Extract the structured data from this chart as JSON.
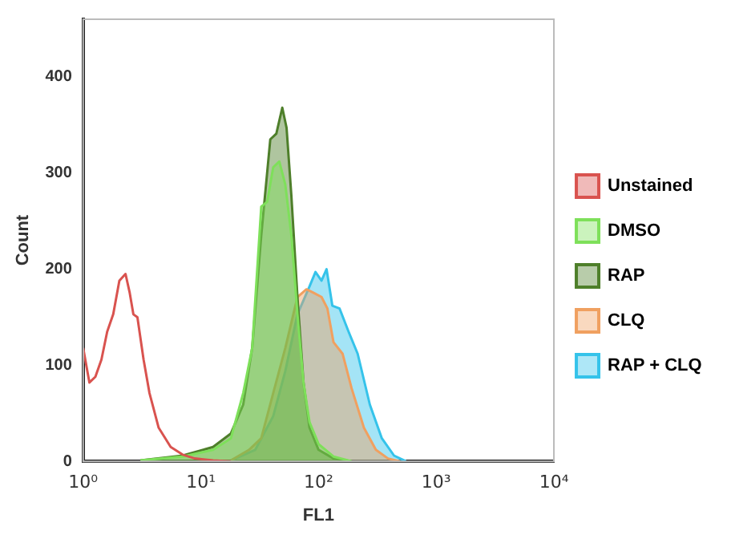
{
  "chart_data": {
    "type": "line",
    "xlabel": "FL1",
    "ylabel": "Count",
    "log": "x",
    "xlim": [
      1,
      10000
    ],
    "xticks": [
      {
        "value": 1,
        "label": "10⁰"
      },
      {
        "value": 10,
        "label": "10¹"
      },
      {
        "value": 100,
        "label": "10²"
      },
      {
        "value": 1000,
        "label": "10³"
      },
      {
        "value": 10000,
        "label": "10⁴"
      }
    ],
    "ylim": [
      0,
      460
    ],
    "yticks": [
      0,
      100,
      200,
      300,
      400
    ],
    "grid": false,
    "legend": "right",
    "marker": "none",
    "line_style": "solid",
    "series": [
      {
        "name": "Unstained",
        "type": "line",
        "color": "#d9534f",
        "x": [
          1,
          1.13,
          1.27,
          1.43,
          1.6,
          1.8,
          2.03,
          2.29,
          2.48,
          2.67,
          2.89,
          3.26,
          3.66,
          4.38,
          5.54,
          7.0,
          8.9,
          12.7,
          18
        ],
        "values": [
          118,
          82,
          88,
          106,
          135,
          153,
          188,
          195,
          176,
          153,
          150,
          106,
          71,
          35,
          15,
          7,
          3,
          1,
          0
        ]
      },
      {
        "name": "DMSO",
        "type": "area",
        "color": "#7ee05a",
        "x": [
          3.07,
          7.0,
          12.7,
          18,
          22.9,
          27.3,
          32.6,
          36.6,
          41.2,
          46.4,
          52.2,
          58.8,
          66.2,
          74.5,
          83.8,
          100,
          134,
          191
        ],
        "values": [
          1,
          5,
          12,
          24,
          71,
          118,
          265,
          270,
          306,
          312,
          288,
          235,
          153,
          82,
          41,
          18,
          5,
          0
        ]
      },
      {
        "name": "RAP",
        "type": "area",
        "color": "#4e7f2a",
        "x": [
          3.07,
          7.0,
          12.7,
          18,
          22.9,
          27.3,
          32.6,
          38.9,
          43.8,
          49.2,
          53.5,
          58.8,
          66.2,
          74.5,
          83.8,
          100,
          134,
          191
        ],
        "values": [
          1,
          6,
          15,
          29,
          59,
          118,
          235,
          335,
          341,
          368,
          347,
          276,
          171,
          82,
          35,
          12,
          3,
          0
        ]
      },
      {
        "name": "CLQ",
        "type": "area",
        "color": "#f0a060",
        "x": [
          18,
          25.7,
          32.6,
          41.2,
          52.2,
          66.2,
          78.9,
          88.9,
          106,
          119,
          134,
          160,
          191,
          243,
          307,
          389,
          492
        ],
        "values": [
          1,
          12,
          24,
          71,
          118,
          171,
          179,
          176,
          171,
          159,
          124,
          112,
          76,
          35,
          12,
          3,
          0
        ]
      },
      {
        "name": "RAP + CLQ",
        "type": "area",
        "color": "#35c3ea",
        "x": [
          18,
          29,
          41.2,
          52.2,
          66.2,
          83.8,
          94.2,
          106,
          117,
          131,
          151,
          180,
          215,
          273,
          345,
          438,
          554
        ],
        "values": [
          1,
          12,
          47,
          94,
          153,
          182,
          197,
          188,
          200,
          162,
          159,
          135,
          112,
          59,
          24,
          6,
          0
        ]
      }
    ]
  }
}
